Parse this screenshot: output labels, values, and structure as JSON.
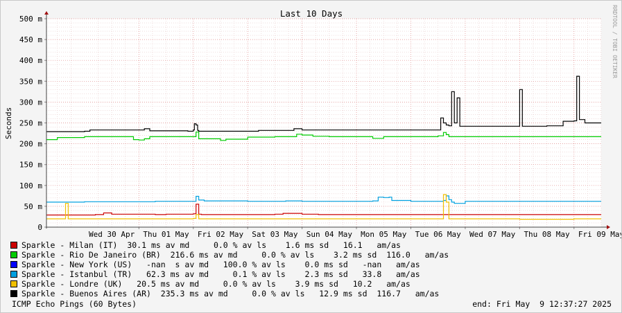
{
  "chart_data": {
    "type": "line",
    "title": "Last 10 Days",
    "ylabel": "Seconds",
    "watermark": "RRDTOOL / TOBI OETIKER",
    "ylim": [
      0,
      0.5
    ],
    "y_ticks": [
      {
        "value": 0.0,
        "label": "0"
      },
      {
        "value": 0.05,
        "label": "50 m"
      },
      {
        "value": 0.1,
        "label": "100 m"
      },
      {
        "value": 0.15,
        "label": "150 m"
      },
      {
        "value": 0.2,
        "label": "200 m"
      },
      {
        "value": 0.25,
        "label": "250 m"
      },
      {
        "value": 0.3,
        "label": "300 m"
      },
      {
        "value": 0.35,
        "label": "350 m"
      },
      {
        "value": 0.4,
        "label": "400 m"
      },
      {
        "value": 0.45,
        "label": "450 m"
      },
      {
        "value": 0.5,
        "label": "500 m"
      }
    ],
    "x_ticks": [
      "Wed 30 Apr",
      "Thu 01 May",
      "Fri 02 May",
      "Sat 03 May",
      "Sun 04 May",
      "Mon 05 May",
      "Tue 06 May",
      "Wed 07 May",
      "Thu 08 May",
      "Fri 09 May"
    ],
    "xlim_days": [
      -0.7,
      9.5
    ],
    "grid": true,
    "series": [
      {
        "name": "Sparkle - Milan (IT)",
        "color": "#cc0000",
        "x": [
          -0.7,
          0.0,
          0.2,
          0.35,
          0.5,
          1.0,
          1.3,
          1.5,
          1.85,
          2.0,
          2.05,
          2.1,
          2.15,
          3.0,
          3.2,
          3.5,
          3.65,
          4.0,
          4.3,
          5.0,
          5.5,
          6.0,
          6.5,
          7.0,
          7.5,
          8.0,
          8.5,
          9.0,
          9.5
        ],
        "y": [
          0.029,
          0.029,
          0.03,
          0.034,
          0.031,
          0.031,
          0.03,
          0.031,
          0.031,
          0.032,
          0.055,
          0.031,
          0.03,
          0.03,
          0.03,
          0.031,
          0.033,
          0.031,
          0.03,
          0.03,
          0.03,
          0.03,
          0.03,
          0.03,
          0.03,
          0.03,
          0.03,
          0.03,
          0.03
        ]
      },
      {
        "name": "Sparkle - Rio De Janeiro (BR)",
        "color": "#00cc00",
        "x": [
          -0.7,
          -0.5,
          0.0,
          0.5,
          0.85,
          0.9,
          1.0,
          1.1,
          1.2,
          1.9,
          2.0,
          2.05,
          2.1,
          2.5,
          2.6,
          3.0,
          3.5,
          3.7,
          3.9,
          4.0,
          4.2,
          4.5,
          5.0,
          5.3,
          5.5,
          6.0,
          6.3,
          6.5,
          6.6,
          6.65,
          6.7,
          7.0,
          7.5,
          8.0,
          8.5,
          9.0,
          9.5
        ],
        "y": [
          0.21,
          0.215,
          0.217,
          0.217,
          0.217,
          0.21,
          0.209,
          0.212,
          0.217,
          0.217,
          0.217,
          0.228,
          0.212,
          0.208,
          0.211,
          0.216,
          0.217,
          0.217,
          0.223,
          0.221,
          0.218,
          0.217,
          0.217,
          0.213,
          0.217,
          0.217,
          0.217,
          0.219,
          0.227,
          0.222,
          0.217,
          0.217,
          0.217,
          0.217,
          0.217,
          0.217,
          0.217
        ]
      },
      {
        "name": "Sparkle - New York (US)",
        "color": "#0000ff",
        "x": [],
        "y": []
      },
      {
        "name": "Sparkle - Istanbul (TR)",
        "color": "#00a0e0",
        "x": [
          -0.7,
          0.0,
          1.0,
          1.3,
          1.5,
          2.0,
          2.05,
          2.1,
          2.2,
          3.0,
          3.5,
          3.7,
          4.0,
          4.5,
          5.0,
          5.3,
          5.4,
          5.5,
          5.6,
          5.65,
          6.0,
          6.5,
          6.6,
          6.65,
          6.7,
          6.75,
          6.8,
          7.0,
          8.0,
          8.5,
          9.0,
          9.5
        ],
        "y": [
          0.06,
          0.061,
          0.061,
          0.062,
          0.062,
          0.062,
          0.074,
          0.065,
          0.063,
          0.062,
          0.062,
          0.063,
          0.062,
          0.062,
          0.062,
          0.063,
          0.072,
          0.071,
          0.072,
          0.064,
          0.062,
          0.062,
          0.064,
          0.075,
          0.066,
          0.06,
          0.057,
          0.062,
          0.062,
          0.062,
          0.062,
          0.062
        ]
      },
      {
        "name": "Sparkle - Londre (UK)",
        "color": "#f0c000",
        "x": [
          -0.7,
          -0.4,
          -0.35,
          -0.3,
          0.0,
          1.0,
          2.0,
          2.05,
          2.1,
          3.0,
          4.0,
          5.0,
          6.0,
          6.55,
          6.6,
          6.65,
          6.7,
          7.0,
          8.0,
          9.0,
          9.5
        ],
        "y": [
          0.02,
          0.02,
          0.057,
          0.02,
          0.02,
          0.02,
          0.021,
          0.03,
          0.02,
          0.02,
          0.02,
          0.02,
          0.02,
          0.02,
          0.078,
          0.06,
          0.02,
          0.02,
          0.019,
          0.02,
          0.02
        ]
      },
      {
        "name": "Sparkle - Buenos Aires (AR)",
        "color": "#000000",
        "x": [
          -0.7,
          0.0,
          0.1,
          1.0,
          1.1,
          1.2,
          1.9,
          2.0,
          2.02,
          2.05,
          2.08,
          2.1,
          2.2,
          3.0,
          3.2,
          3.5,
          3.8,
          3.85,
          4.0,
          4.5,
          5.0,
          5.5,
          6.0,
          6.3,
          6.5,
          6.55,
          6.6,
          6.65,
          6.7,
          6.75,
          6.8,
          6.85,
          6.9,
          7.0,
          7.5,
          7.95,
          8.0,
          8.05,
          8.5,
          8.8,
          9.0,
          9.05,
          9.1,
          9.2,
          9.5
        ],
        "y": [
          0.229,
          0.23,
          0.233,
          0.233,
          0.236,
          0.231,
          0.23,
          0.233,
          0.248,
          0.245,
          0.232,
          0.23,
          0.23,
          0.23,
          0.232,
          0.232,
          0.232,
          0.236,
          0.233,
          0.233,
          0.233,
          0.233,
          0.233,
          0.233,
          0.233,
          0.262,
          0.25,
          0.245,
          0.243,
          0.325,
          0.25,
          0.31,
          0.242,
          0.242,
          0.242,
          0.242,
          0.33,
          0.242,
          0.243,
          0.254,
          0.255,
          0.362,
          0.258,
          0.25,
          0.25
        ]
      }
    ],
    "legend": [
      {
        "label": "Sparkle - Milan (IT)",
        "stats": "  30.1 ms av md     0.0 % av ls    1.6 ms sd   16.1   am/as",
        "color": "#cc0000"
      },
      {
        "label": "Sparkle - Rio De Janeiro (BR)",
        "stats": "  216.6 ms av md     0.0 % av ls    3.2 ms sd  116.0   am/as",
        "color": "#00cc00"
      },
      {
        "label": "Sparkle - New York (US)",
        "stats": "   -nan  s av md   100.0 % av ls    0.0 ms sd   -nan   am/as",
        "color": "#0000ff"
      },
      {
        "label": "Sparkle - Istanbul (TR)",
        "stats": "   62.3 ms av md     0.1 % av ls    2.3 ms sd   33.8   am/as",
        "color": "#00a0e0"
      },
      {
        "label": "Sparkle - Londre (UK)",
        "stats": "   20.5 ms av md     0.0 % av ls    3.9 ms sd   10.2   am/as",
        "color": "#f0c000"
      },
      {
        "label": "Sparkle - Buenos Aires (AR)",
        "stats": "  235.3 ms av md     0.0 % av ls   12.9 ms sd  116.7   am/as",
        "color": "#000000"
      }
    ],
    "footer_left": "ICMP Echo Pings (60 Bytes)",
    "footer_right": "end: Fri May  9 12:37:27 2025"
  }
}
